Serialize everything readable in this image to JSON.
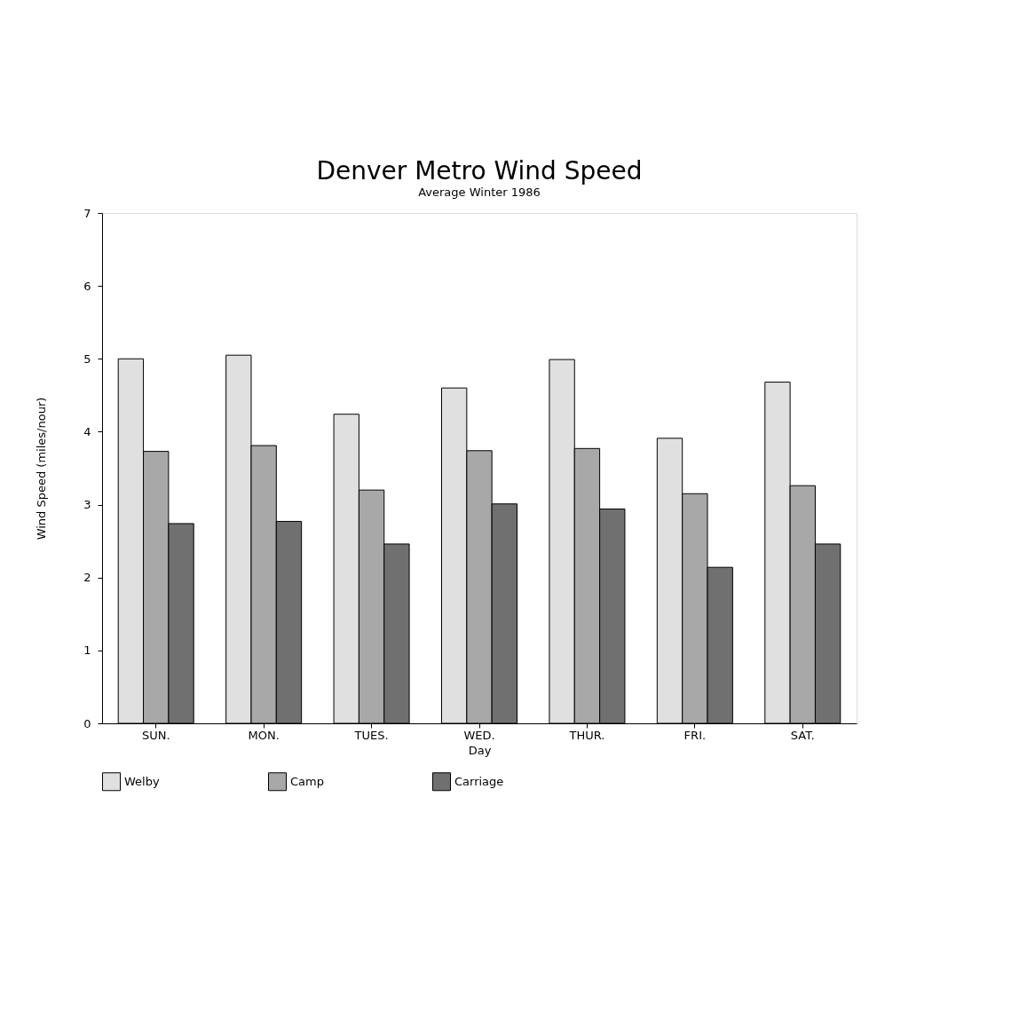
{
  "chart_data": {
    "type": "bar",
    "title": "Denver Metro Wind Speed",
    "subtitle": "Average Winter 1986",
    "xlabel": "Day",
    "ylabel": "Wind Speed (miles/nour)",
    "categories": [
      "SUN.",
      "MON.",
      "TUES.",
      "WED.",
      "THUR.",
      "FRI.",
      "SAT."
    ],
    "series": [
      {
        "name": "Welby",
        "color": "#e0e0e0",
        "values": [
          5.0,
          5.05,
          4.24,
          4.6,
          4.99,
          3.91,
          4.68
        ]
      },
      {
        "name": "Camp",
        "color": "#a8a8a8",
        "values": [
          3.73,
          3.81,
          3.2,
          3.74,
          3.77,
          3.15,
          3.26
        ]
      },
      {
        "name": "Carriage",
        "color": "#707070",
        "values": [
          2.74,
          2.77,
          2.46,
          3.01,
          2.94,
          2.14,
          2.46
        ]
      }
    ],
    "ylim": [
      0,
      7
    ],
    "yticks": [
      0,
      1,
      2,
      3,
      4,
      5,
      6,
      7
    ],
    "grid": false,
    "legend": "bottom"
  }
}
